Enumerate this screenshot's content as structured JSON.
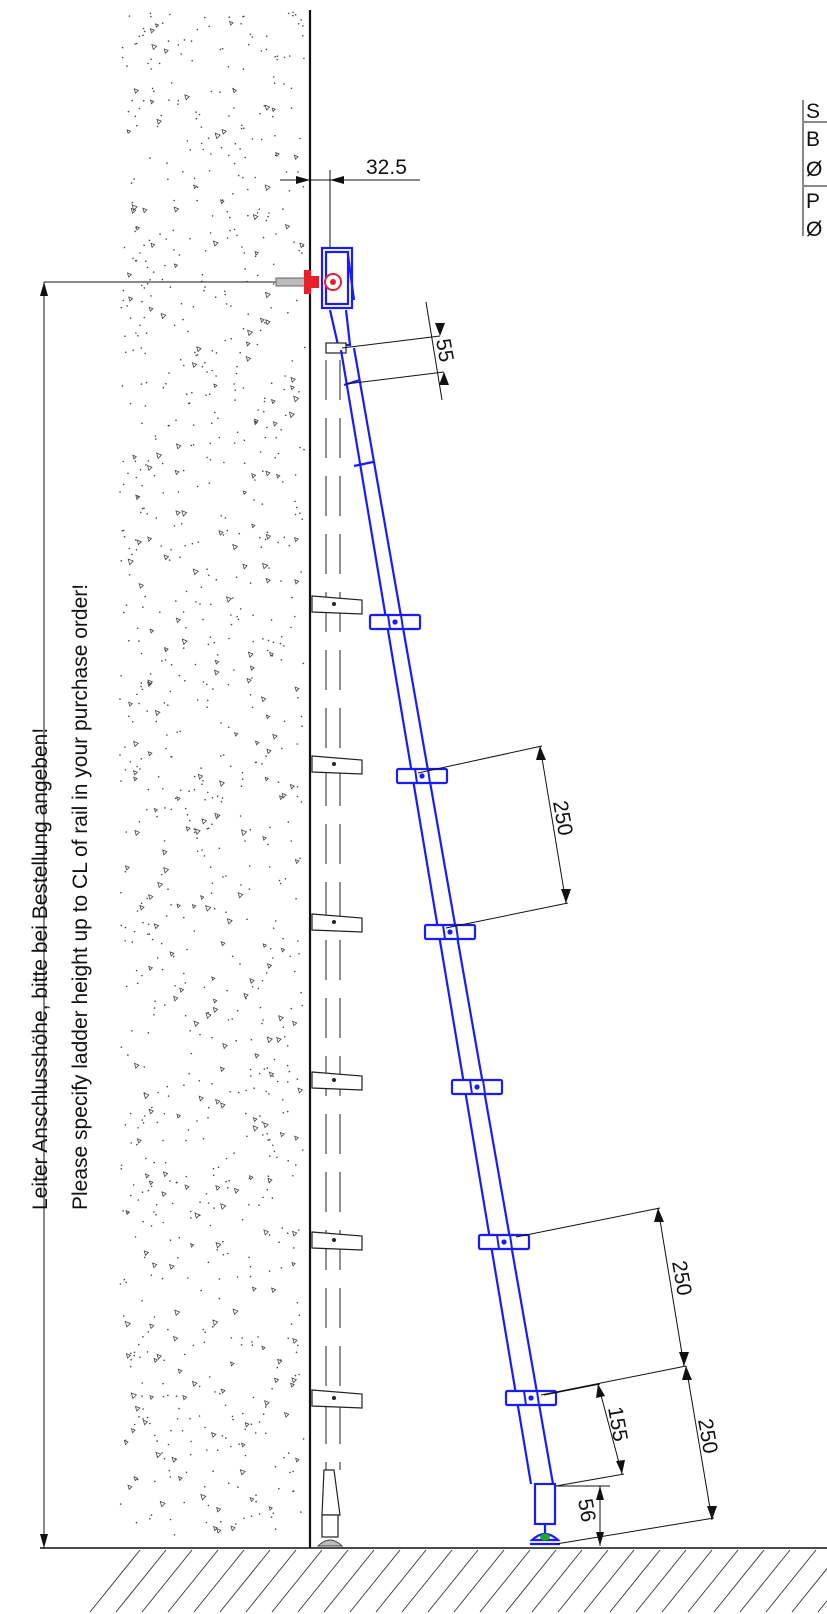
{
  "notes": {
    "line_de": "Leiter Anschlusshöhe, bitte bei Bestellung angeben!",
    "line_en": "Please specify ladder height up to CL of rail in your purchase order!"
  },
  "dimensions": {
    "wall_offset": "32.5",
    "top_segment": "55",
    "rung_pitch_upper": "250",
    "rung_pitch_lower_a": "250",
    "rung_pitch_lower_b": "250",
    "bottom_rung": "155",
    "foot_height": "56"
  },
  "side_table": {
    "row1": "S",
    "row2": "B",
    "row3": "Ø",
    "row4": "P",
    "row5": "Ø"
  },
  "colors": {
    "ladder": "#1a1aff",
    "anchor": "#e8202a",
    "foot_pad": "#22aa22",
    "lines": "#111111"
  }
}
